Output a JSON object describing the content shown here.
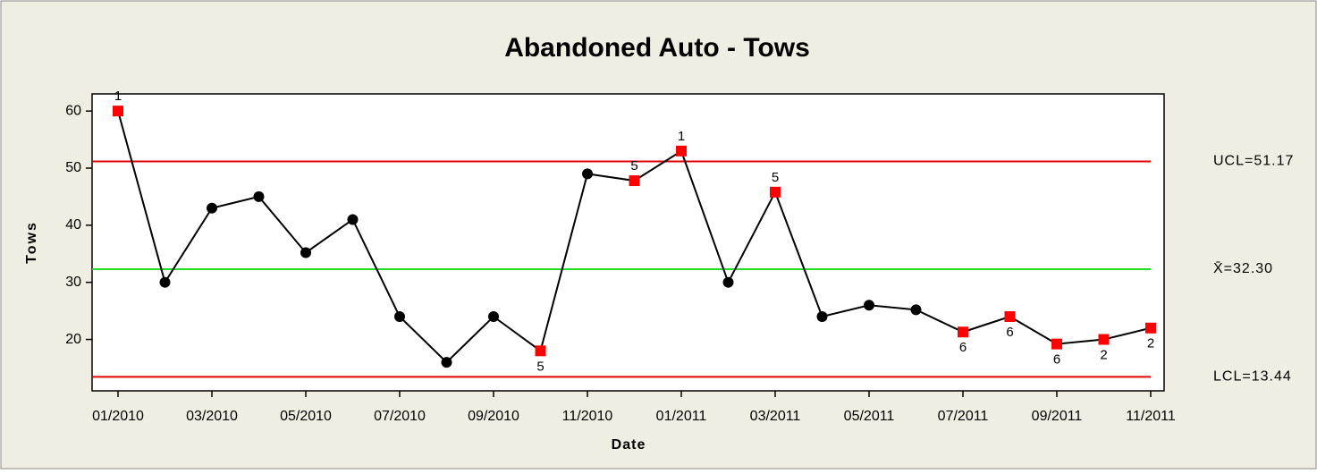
{
  "chart_data": {
    "type": "control",
    "title": "Abandoned Auto - Tows",
    "x_label": "Date",
    "y_label": "Tows",
    "categories": [
      "01/2010",
      null,
      "03/2010",
      null,
      "05/2010",
      null,
      "07/2010",
      null,
      "09/2010",
      null,
      "11/2010",
      null,
      "01/2011",
      null,
      "03/2011",
      null,
      "05/2011",
      null,
      "07/2011",
      null,
      "09/2011",
      null,
      "11/2011"
    ],
    "values": [
      60,
      30,
      43,
      45,
      35.2,
      41,
      24,
      16,
      24,
      18,
      49,
      47.8,
      53,
      30,
      45.8,
      24,
      26,
      25.2,
      21.3,
      24,
      19.2,
      20,
      22
    ],
    "flags": [
      "1",
      null,
      null,
      null,
      null,
      null,
      null,
      null,
      null,
      "5",
      null,
      "5",
      "1",
      null,
      "5",
      null,
      null,
      null,
      "6",
      "6",
      "6",
      "2",
      "2"
    ],
    "color": "#000000",
    "flag_color": "#ff0000",
    "limits": [
      {
        "name": "UCL",
        "value": 51.17,
        "label": "UCL=51.17",
        "color": "#e00000"
      },
      {
        "name": "X̄",
        "value": 32.3,
        "label": "X̄=32.30",
        "color": "#22dd22"
      },
      {
        "name": "LCL",
        "value": 13.44,
        "label": "LCL=13.44",
        "color": "#e00000"
      }
    ],
    "ylim": [
      11,
      63
    ],
    "yticks": [
      20,
      30,
      40,
      50,
      60
    ]
  }
}
